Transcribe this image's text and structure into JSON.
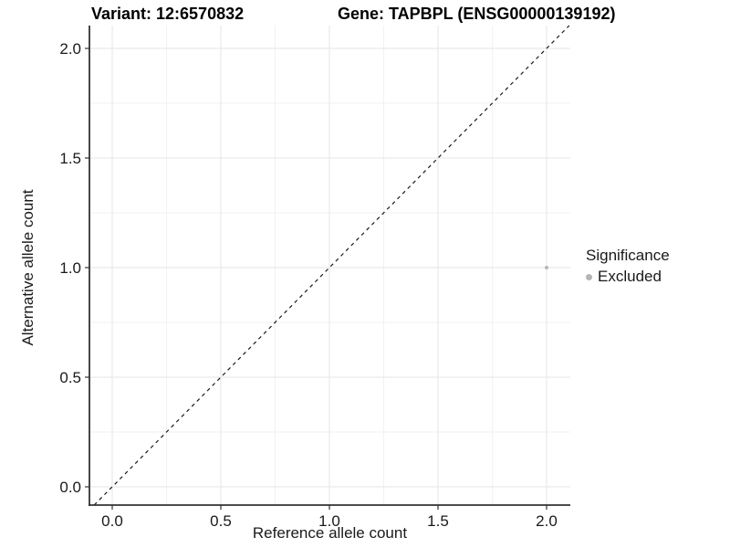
{
  "header": {
    "variant_title": "Variant: 12:6570832",
    "gene_title": "Gene: TAPBPL (ENSG00000139192)"
  },
  "legend": {
    "title": "Significance",
    "entries": [
      {
        "label": "Excluded",
        "color": "#b5b5b5"
      }
    ]
  },
  "colors": {
    "background": "#ffffff",
    "grid_major": "#e6e6e6",
    "grid_minor": "#f2f2f2",
    "axis": "#333333",
    "tick_text": "#1a1a1a",
    "identity_line": "#1a1a1a",
    "point": "#b5b5b5"
  },
  "chart_data": {
    "type": "scatter",
    "title": "Variant: 12:6570832  |  Gene: TAPBPL (ENSG00000139192)",
    "xlabel": "Reference allele count",
    "ylabel": "Alternative allele count",
    "xlim": [
      -0.105,
      2.11
    ],
    "ylim": [
      -0.083,
      2.104
    ],
    "x_ticks": [
      0.0,
      0.5,
      1.0,
      1.5,
      2.0
    ],
    "x_tick_labels": [
      "0.0",
      "0.5",
      "1.0",
      "1.5",
      "2.0"
    ],
    "y_ticks": [
      0.0,
      0.5,
      1.0,
      1.5,
      2.0
    ],
    "y_tick_labels": [
      "0.0",
      "0.5",
      "1.0",
      "1.5",
      "2.0"
    ],
    "grid": "major+minor",
    "legend_position": "right",
    "series": [
      {
        "name": "Excluded",
        "color": "#b5b5b5",
        "point_radius_px": 2,
        "points": [
          {
            "x": 2.0,
            "y": 1.0
          }
        ]
      }
    ],
    "reference_line": {
      "kind": "identity",
      "style": "dashed",
      "color": "#1a1a1a"
    }
  }
}
